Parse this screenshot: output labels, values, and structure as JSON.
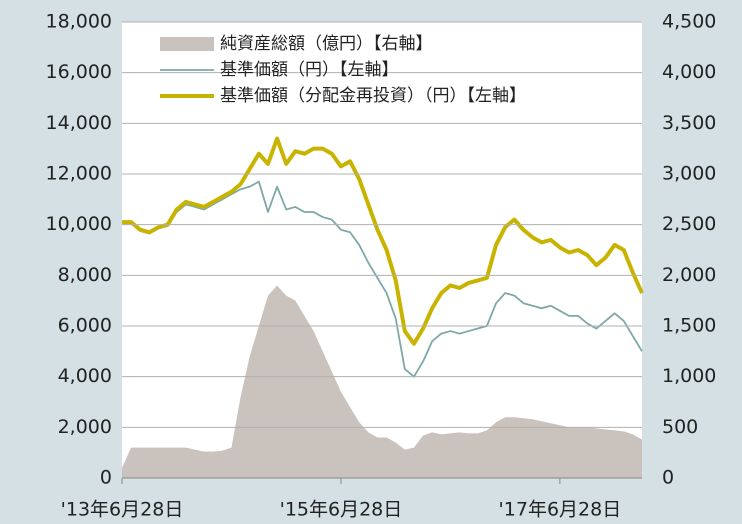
{
  "chart_data": {
    "type": "line",
    "categories": [
      "'13年6月28日",
      null,
      null,
      null,
      null,
      null,
      null,
      null,
      null,
      null,
      null,
      null,
      null,
      null,
      null,
      null,
      null,
      null,
      null,
      null,
      null,
      null,
      null,
      null,
      "'15年6月28日",
      null,
      null,
      null,
      null,
      null,
      null,
      null,
      null,
      null,
      null,
      null,
      null,
      null,
      null,
      null,
      null,
      null,
      null,
      null,
      null,
      null,
      null,
      null,
      "'17年6月28日",
      null,
      null,
      null,
      null,
      null,
      null,
      null,
      null,
      null
    ],
    "series": [
      {
        "name": "純資産総額（億円）【右軸】",
        "type": "area",
        "axis": "y2",
        "color": "#c9c2bd",
        "values": [
          100,
          300,
          300,
          300,
          300,
          300,
          300,
          300,
          280,
          260,
          260,
          270,
          300,
          800,
          1200,
          1500,
          1800,
          1900,
          1800,
          1750,
          1600,
          1450,
          1250,
          1050,
          850,
          700,
          550,
          450,
          400,
          400,
          350,
          280,
          300,
          420,
          450,
          430,
          440,
          450,
          440,
          440,
          470,
          550,
          600,
          600,
          590,
          580,
          560,
          540,
          520,
          500,
          500,
          500,
          490,
          480,
          470,
          460,
          430,
          380
        ]
      },
      {
        "name": "基準価額（円）【左軸】",
        "type": "line",
        "color": "#7ea8a8",
        "values": [
          10050,
          10050,
          9750,
          9650,
          9850,
          9950,
          10500,
          10800,
          10700,
          10600,
          10800,
          11000,
          11200,
          11400,
          11500,
          11700,
          10500,
          11500,
          10600,
          10700,
          10500,
          10500,
          10300,
          10200,
          9800,
          9700,
          9200,
          8500,
          7900,
          7300,
          6300,
          4300,
          4000,
          4600,
          5400,
          5700,
          5800,
          5700,
          5800,
          5900,
          6000,
          6900,
          7300,
          7200,
          6900,
          6800,
          6700,
          6800,
          6600,
          6400,
          6400,
          6100,
          5900,
          6200,
          6500,
          6200,
          5600,
          5000
        ]
      },
      {
        "name": "基準価額（分配金再投資）（円）【左軸】",
        "type": "line",
        "color": "#c8b400",
        "values": [
          10100,
          10100,
          9800,
          9700,
          9900,
          10000,
          10600,
          10900,
          10800,
          10700,
          10900,
          11100,
          11300,
          11600,
          12200,
          12800,
          12400,
          13400,
          12400,
          12900,
          12800,
          13000,
          13000,
          12800,
          12300,
          12500,
          11800,
          10800,
          9800,
          9000,
          7800,
          5800,
          5300,
          5900,
          6700,
          7300,
          7600,
          7500,
          7700,
          7800,
          7900,
          9200,
          9900,
          10200,
          9800,
          9500,
          9300,
          9400,
          9100,
          8900,
          9000,
          8800,
          8400,
          8700,
          9200,
          9000,
          8100,
          7300
        ]
      }
    ],
    "ylim": [
      0,
      18000
    ],
    "yticks": [
      0,
      {
        "value": 2000,
        "label": "2,000"
      },
      {
        "value": 4000,
        "label": "4,000"
      },
      {
        "value": 6000,
        "label": "6,000"
      },
      {
        "value": 8000,
        "label": "8,000"
      },
      {
        "value": 10000,
        "label": "10,000"
      },
      {
        "value": 12000,
        "label": "12,000"
      },
      {
        "value": 14000,
        "label": "14,000"
      },
      {
        "value": 16000,
        "label": "16,000"
      },
      {
        "value": 18000,
        "label": "18,000"
      }
    ],
    "y2lim": [
      0,
      4500
    ],
    "y2ticks": [
      0,
      500,
      {
        "value": 1000,
        "label": "1,000"
      },
      {
        "value": 1500,
        "label": "1,500"
      },
      {
        "value": 2000,
        "label": "2,000"
      },
      {
        "value": 2500,
        "label": "2,500"
      },
      {
        "value": 3000,
        "label": "3,000"
      },
      {
        "value": 3500,
        "label": "3,500"
      },
      {
        "value": 4000,
        "label": "4,000"
      },
      {
        "value": 4500,
        "label": "4,500"
      }
    ],
    "grid": true,
    "legend": "upper left"
  }
}
